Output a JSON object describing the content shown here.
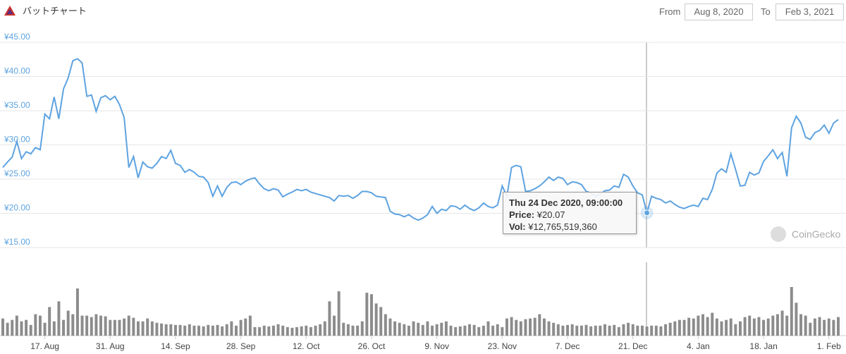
{
  "header": {
    "from_label": "From",
    "from": "Aug 8, 2020",
    "to_label": "To",
    "to": "Feb 3, 2021"
  },
  "tooltip": {
    "date": "Thu 24 Dec 2020, 09:00:00",
    "price_label": "Price:",
    "price": "¥20.07",
    "vol_label": "Vol:",
    "vol": "¥12,765,519,360"
  },
  "watermark": "CoinGecko",
  "chart_data": {
    "type": "line",
    "title": "バットチャート",
    "grid": true,
    "ylim": [
      15,
      45
    ],
    "yticks": [
      {
        "value": 15,
        "label": "¥15.00"
      },
      {
        "value": 20,
        "label": "¥20.00"
      },
      {
        "value": 25,
        "label": "¥25.00"
      },
      {
        "value": 30,
        "label": "¥30.00"
      },
      {
        "value": 35,
        "label": "¥35.00"
      },
      {
        "value": 40,
        "label": "¥40.00"
      },
      {
        "value": 45,
        "label": "¥45.00"
      }
    ],
    "categories": [
      null,
      null,
      null,
      null,
      null,
      null,
      null,
      null,
      null,
      "17. Aug",
      null,
      null,
      null,
      null,
      null,
      null,
      null,
      null,
      null,
      null,
      null,
      null,
      null,
      "31. Aug",
      null,
      null,
      null,
      null,
      null,
      null,
      null,
      null,
      null,
      null,
      null,
      null,
      null,
      "14. Sep",
      null,
      null,
      null,
      null,
      null,
      null,
      null,
      null,
      null,
      null,
      null,
      null,
      null,
      "28. Sep",
      null,
      null,
      null,
      null,
      null,
      null,
      null,
      null,
      null,
      null,
      null,
      null,
      null,
      "12. Oct",
      null,
      null,
      null,
      null,
      null,
      null,
      null,
      null,
      null,
      null,
      null,
      null,
      null,
      "26. Oct",
      null,
      null,
      null,
      null,
      null,
      null,
      null,
      null,
      null,
      null,
      null,
      null,
      null,
      "9. Nov",
      null,
      null,
      null,
      null,
      null,
      null,
      null,
      null,
      null,
      null,
      null,
      null,
      null,
      "23. Nov",
      null,
      null,
      null,
      null,
      null,
      null,
      null,
      null,
      null,
      null,
      null,
      null,
      null,
      "7. Dec",
      null,
      null,
      null,
      null,
      null,
      null,
      null,
      null,
      null,
      null,
      null,
      null,
      null,
      "21. Dec",
      null,
      null,
      null,
      null,
      null,
      null,
      null,
      null,
      null,
      null,
      null,
      null,
      null,
      "4. Jan",
      null,
      null,
      null,
      null,
      null,
      null,
      null,
      null,
      null,
      null,
      null,
      null,
      null,
      "18. Jan",
      null,
      null,
      null,
      null,
      null,
      null,
      null,
      null,
      null,
      null,
      null,
      null,
      null,
      "1. Feb",
      null,
      null
    ],
    "series": [
      {
        "type": "line",
        "color": "#5ea3e0",
        "values": [
          26.7,
          27.5,
          28.2,
          30.5,
          28.0,
          29.0,
          28.7,
          29.6,
          29.3,
          34.5,
          33.8,
          37.0,
          33.8,
          38.2,
          39.8,
          42.3,
          42.6,
          42.0,
          37.1,
          37.3,
          34.9,
          36.9,
          37.2,
          36.6,
          37.1,
          35.9,
          34.0,
          26.7,
          28.3,
          25.2,
          27.5,
          26.8,
          26.6,
          27.3,
          28.3,
          28.0,
          29.2,
          27.3,
          27.0,
          26.0,
          26.4,
          26.0,
          25.4,
          25.3,
          24.5,
          22.5,
          24.0,
          22.5,
          23.8,
          24.5,
          24.6,
          24.2,
          24.7,
          25.0,
          25.2,
          24.3,
          23.6,
          23.3,
          23.6,
          23.4,
          22.4,
          22.8,
          23.1,
          23.5,
          23.3,
          23.5,
          23.1,
          22.9,
          22.7,
          22.5,
          22.3,
          21.8,
          22.6,
          22.5,
          22.6,
          22.2,
          22.6,
          23.2,
          23.2,
          23.0,
          22.5,
          22.4,
          22.3,
          20.3,
          19.9,
          19.8,
          19.5,
          19.8,
          19.3,
          19.0,
          19.3,
          19.8,
          21.0,
          20.0,
          20.6,
          20.4,
          21.1,
          21.0,
          20.6,
          21.2,
          20.7,
          20.4,
          20.8,
          21.5,
          21.0,
          20.8,
          21.2,
          24.0,
          22.5,
          26.7,
          27.0,
          26.8,
          23.2,
          23.3,
          23.6,
          24.0,
          24.6,
          25.3,
          24.8,
          25.3,
          25.1,
          24.2,
          24.6,
          24.5,
          24.2,
          23.2,
          23.0,
          22.5,
          22.8,
          23.3,
          23.4,
          24.0,
          23.8,
          25.7,
          25.3,
          24.0,
          23.0,
          22.7,
          20.07,
          22.5,
          22.2,
          22.0,
          21.5,
          21.8,
          21.3,
          20.9,
          20.7,
          21.0,
          21.2,
          21.0,
          22.2,
          22.0,
          23.5,
          25.9,
          26.5,
          26.0,
          28.7,
          26.4,
          24.0,
          24.1,
          26.0,
          25.6,
          25.9,
          27.6,
          28.4,
          29.3,
          28.0,
          28.9,
          25.4,
          32.5,
          34.2,
          33.2,
          31.1,
          30.8,
          31.8,
          32.1,
          32.9,
          31.7,
          33.2,
          33.7
        ]
      },
      {
        "type": "bar",
        "color": "#8c8c8c",
        "values": [
          24000000000.0,
          18000000000.0,
          22000000000.0,
          28000000000.0,
          20000000000.0,
          22000000000.0,
          15000000000.0,
          30000000000.0,
          28000000000.0,
          18000000000.0,
          40000000000.0,
          20000000000.0,
          48000000000.0,
          22000000000.0,
          35000000000.0,
          30000000000.0,
          66000000000.0,
          28000000000.0,
          28000000000.0,
          26000000000.0,
          30000000000.0,
          28000000000.0,
          27000000000.0,
          22000000000.0,
          22000000000.0,
          22000000000.0,
          24000000000.0,
          28000000000.0,
          25000000000.0,
          20000000000.0,
          20000000000.0,
          24000000000.0,
          20000000000.0,
          18000000000.0,
          17000000000.0,
          16000000000.0,
          16000000000.0,
          15000000000.0,
          15000000000.0,
          14000000000.0,
          16000000000.0,
          14000000000.0,
          14000000000.0,
          13000000000.0,
          15000000000.0,
          14000000000.0,
          15000000000.0,
          13000000000.0,
          16000000000.0,
          20000000000.0,
          14000000000.0,
          22000000000.0,
          24000000000.0,
          28000000000.0,
          12000000000.0,
          12000000000.0,
          14000000000.0,
          13000000000.0,
          14000000000.0,
          16000000000.0,
          14000000000.0,
          12000000000.0,
          11000000000.0,
          12000000000.0,
          13000000000.0,
          14000000000.0,
          12000000000.0,
          14000000000.0,
          16000000000.0,
          20000000000.0,
          48000000000.0,
          28000000000.0,
          62000000000.0,
          18000000000.0,
          16000000000.0,
          14000000000.0,
          14000000000.0,
          20000000000.0,
          60000000000.0,
          58000000000.0,
          45000000000.0,
          40000000000.0,
          30000000000.0,
          24000000000.0,
          20000000000.0,
          18000000000.0,
          16000000000.0,
          14000000000.0,
          20000000000.0,
          18000000000.0,
          15000000000.0,
          20000000000.0,
          14000000000.0,
          16000000000.0,
          18000000000.0,
          20000000000.0,
          14000000000.0,
          12000000000.0,
          13000000000.0,
          14000000000.0,
          16000000000.0,
          15000000000.0,
          12000000000.0,
          14000000000.0,
          20000000000.0,
          14000000000.0,
          16000000000.0,
          12000000000.0,
          24000000000.0,
          26000000000.0,
          22000000000.0,
          20000000000.0,
          23000000000.0,
          24000000000.0,
          25000000000.0,
          30000000000.0,
          24000000000.0,
          20000000000.0,
          18000000000.0,
          16000000000.0,
          14000000000.0,
          15000000000.0,
          16000000000.0,
          14000000000.0,
          14000000000.0,
          15000000000.0,
          13000000000.0,
          14000000000.0,
          14000000000.0,
          16000000000.0,
          14000000000.0,
          15000000000.0,
          12000000000.0,
          16000000000.0,
          18000000000.0,
          16000000000.0,
          14000000000.0,
          14000000000.0,
          12765519360,
          14000000000.0,
          14000000000.0,
          13000000000.0,
          16000000000.0,
          18000000000.0,
          20000000000.0,
          22000000000.0,
          22000000000.0,
          25000000000.0,
          24000000000.0,
          28000000000.0,
          30000000000.0,
          26000000000.0,
          32000000000.0,
          24000000000.0,
          20000000000.0,
          22000000000.0,
          24000000000.0,
          16000000000.0,
          20000000000.0,
          26000000000.0,
          28000000000.0,
          24000000000.0,
          26000000000.0,
          22000000000.0,
          24000000000.0,
          28000000000.0,
          30000000000.0,
          35000000000.0,
          28000000000.0,
          68000000000.0,
          46000000000.0,
          30000000000.0,
          28000000000.0,
          18000000000.0,
          24000000000.0,
          26000000000.0,
          22000000000.0,
          24000000000.0,
          22000000000.0,
          26000000000.0
        ]
      }
    ]
  }
}
